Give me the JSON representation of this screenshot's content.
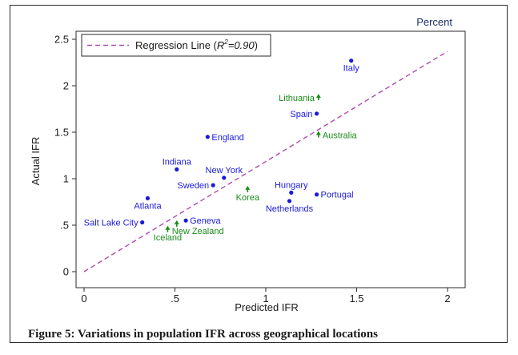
{
  "caption": "Figure 5: Variations in population IFR across geographical locations",
  "chart_data": {
    "type": "scatter",
    "corner_label": "Percent",
    "xlabel": "Predicted IFR",
    "ylabel": "Actual IFR",
    "xlim": [
      0,
      2
    ],
    "ylim": [
      0,
      2.5
    ],
    "xticks": [
      0,
      0.5,
      1,
      1.5,
      2
    ],
    "xtick_labels": [
      "0",
      ".5",
      "1",
      "1.5",
      "2"
    ],
    "yticks": [
      0,
      0.5,
      1,
      1.5,
      2,
      2.5
    ],
    "ytick_labels": [
      "0",
      ".5",
      "1",
      "1.5",
      "2",
      "2.5"
    ],
    "legend": {
      "position": "top-left",
      "prefix": "Regression Line (",
      "r_symbol": "R",
      "r_exponent": "2",
      "r_value": "=0.90",
      "suffix": ")"
    },
    "regression_line": {
      "color": "#b04ab0",
      "x": [
        0,
        2
      ],
      "y": [
        0,
        2.37
      ]
    },
    "colors": {
      "blue": "#1a1adc",
      "green": "#1a8a1a"
    },
    "points": [
      {
        "label": "Italy",
        "x": 1.47,
        "y": 2.27,
        "group": "blue",
        "marker": "dot",
        "anchor": "below"
      },
      {
        "label": "Lithuania",
        "x": 1.29,
        "y": 1.87,
        "group": "green",
        "marker": "arrow",
        "anchor": "left"
      },
      {
        "label": "Spain",
        "x": 1.28,
        "y": 1.7,
        "group": "blue",
        "marker": "dot",
        "anchor": "left"
      },
      {
        "label": "Australia",
        "x": 1.29,
        "y": 1.47,
        "group": "green",
        "marker": "arrow",
        "anchor": "right"
      },
      {
        "label": "England",
        "x": 0.68,
        "y": 1.45,
        "group": "blue",
        "marker": "dot",
        "anchor": "right"
      },
      {
        "label": "Indiana",
        "x": 0.51,
        "y": 1.1,
        "group": "blue",
        "marker": "dot",
        "anchor": "above"
      },
      {
        "label": "New York",
        "x": 0.77,
        "y": 1.01,
        "group": "blue",
        "marker": "dot",
        "anchor": "above"
      },
      {
        "label": "Sweden",
        "x": 0.71,
        "y": 0.93,
        "group": "blue",
        "marker": "dot",
        "anchor": "left"
      },
      {
        "label": "Korea",
        "x": 0.9,
        "y": 0.88,
        "group": "green",
        "marker": "arrow",
        "anchor": "below"
      },
      {
        "label": "Hungary",
        "x": 1.14,
        "y": 0.85,
        "group": "blue",
        "marker": "dot",
        "anchor": "above"
      },
      {
        "label": "Portugal",
        "x": 1.28,
        "y": 0.83,
        "group": "blue",
        "marker": "dot",
        "anchor": "right"
      },
      {
        "label": "Atlanta",
        "x": 0.35,
        "y": 0.79,
        "group": "blue",
        "marker": "dot",
        "anchor": "below"
      },
      {
        "label": "Netherlands",
        "x": 1.13,
        "y": 0.76,
        "group": "blue",
        "marker": "dot",
        "anchor": "below"
      },
      {
        "label": "Geneva",
        "x": 0.56,
        "y": 0.55,
        "group": "blue",
        "marker": "dot",
        "anchor": "right"
      },
      {
        "label": "Salt Lake City",
        "x": 0.32,
        "y": 0.53,
        "group": "blue",
        "marker": "dot",
        "anchor": "left"
      },
      {
        "label": "New Zealand",
        "x": 0.51,
        "y": 0.51,
        "group": "green",
        "marker": "arrow",
        "anchor": "below-right"
      },
      {
        "label": "Iceland",
        "x": 0.46,
        "y": 0.45,
        "group": "green",
        "marker": "arrow",
        "anchor": "below"
      }
    ]
  }
}
